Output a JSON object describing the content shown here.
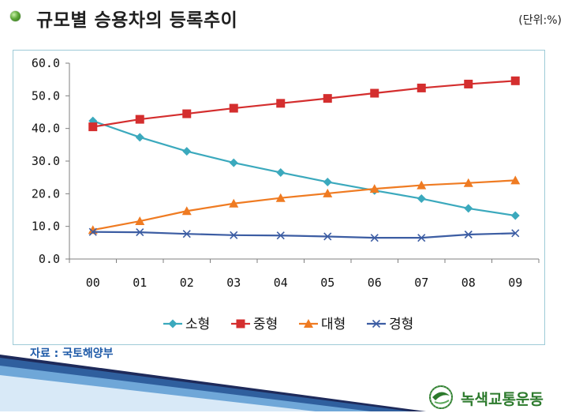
{
  "header": {
    "title": "규모별 승용차의 등록추이",
    "unit": "(단위:%)"
  },
  "footer": {
    "source": "자료 : 국토해양부",
    "logo_text": "녹색교통운동"
  },
  "colors": {
    "small": "#3ba9bd",
    "medium": "#d42e2e",
    "large": "#ef7b22",
    "compact": "#3c5da3",
    "frame": "#9ecbd7",
    "source_text": "#1e5aa8",
    "logo_green": "#2c7a2c"
  },
  "chart_data": {
    "type": "line",
    "categories": [
      "00",
      "01",
      "02",
      "03",
      "04",
      "05",
      "06",
      "07",
      "08",
      "09"
    ],
    "ylim": [
      0,
      60
    ],
    "yticks": [
      "0.0",
      "10.0",
      "20.0",
      "30.0",
      "40.0",
      "50.0",
      "60.0"
    ],
    "grid": false,
    "legend_position": "bottom",
    "series": [
      {
        "name": "소형",
        "marker": "diamond",
        "color": "#3ba9bd",
        "values": [
          42.3,
          37.3,
          33.0,
          29.5,
          26.5,
          23.6,
          21.0,
          18.5,
          15.5,
          13.3
        ]
      },
      {
        "name": "중형",
        "marker": "square",
        "color": "#d42e2e",
        "values": [
          40.5,
          42.8,
          44.5,
          46.2,
          47.7,
          49.2,
          50.8,
          52.4,
          53.6,
          54.6
        ]
      },
      {
        "name": "대형",
        "marker": "triangle",
        "color": "#ef7b22",
        "values": [
          8.9,
          11.6,
          14.7,
          17.0,
          18.7,
          20.1,
          21.5,
          22.6,
          23.3,
          24.1
        ]
      },
      {
        "name": "경형",
        "marker": "x",
        "color": "#3c5da3",
        "values": [
          8.3,
          8.2,
          7.7,
          7.3,
          7.2,
          6.9,
          6.5,
          6.5,
          7.5,
          7.9
        ]
      }
    ]
  }
}
